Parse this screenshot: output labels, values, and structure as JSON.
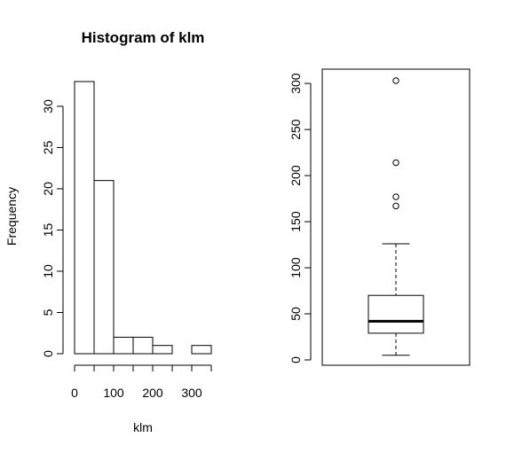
{
  "chart_data": [
    {
      "type": "histogram",
      "title": "Histogram of klm",
      "xlabel": "klm",
      "ylabel": "Frequency",
      "bin_width": 50,
      "bins": [
        {
          "from": 0,
          "to": 50,
          "count": 33
        },
        {
          "from": 50,
          "to": 100,
          "count": 21
        },
        {
          "from": 100,
          "to": 150,
          "count": 2
        },
        {
          "from": 150,
          "to": 200,
          "count": 2
        },
        {
          "from": 200,
          "to": 250,
          "count": 1
        },
        {
          "from": 250,
          "to": 300,
          "count": 0
        },
        {
          "from": 300,
          "to": 350,
          "count": 1
        }
      ],
      "xlim": [
        0,
        350
      ],
      "ylim": [
        0,
        33
      ],
      "x_ticks": [
        0,
        100,
        200,
        300
      ],
      "x_ticks_minor": [
        50,
        150,
        250,
        350
      ],
      "y_ticks": [
        0,
        5,
        10,
        15,
        20,
        25,
        30
      ]
    },
    {
      "type": "boxplot",
      "title": "",
      "ylim": [
        0,
        303
      ],
      "y_ticks": [
        0,
        50,
        100,
        150,
        200,
        250,
        300
      ],
      "stats": {
        "whisker_low": 5,
        "q1": 29,
        "median": 42,
        "q3": 70,
        "whisker_high": 126
      },
      "outliers": [
        167,
        177,
        214,
        303
      ],
      "frame": true
    }
  ]
}
